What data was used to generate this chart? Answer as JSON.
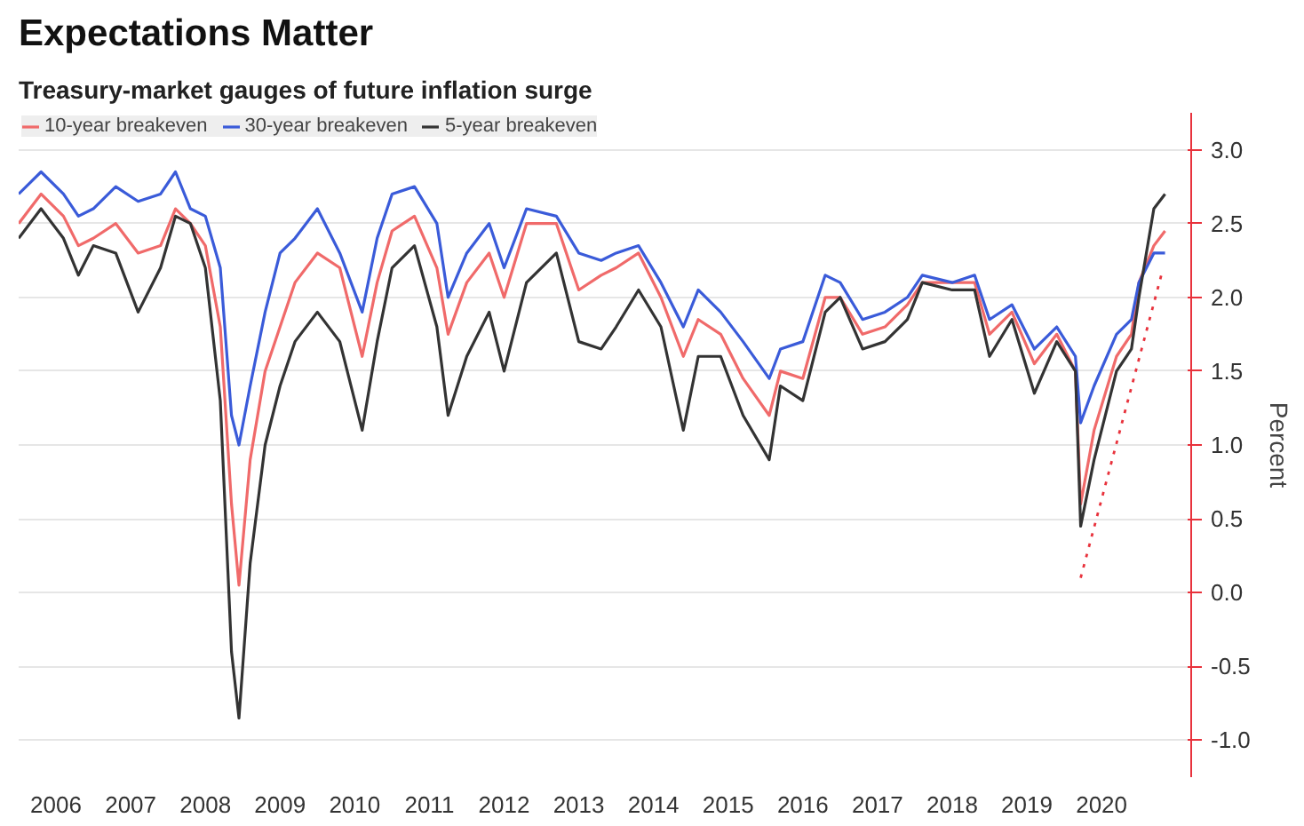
{
  "chart_data": {
    "type": "line",
    "title": "Expectations Matter",
    "subtitle": "Treasury-market gauges of future inflation surge",
    "ylabel": "Percent",
    "xlim": [
      2006.0,
      2021.7
    ],
    "ylim": [
      -1.25,
      3.25
    ],
    "xticks": [
      {
        "value": 2006.5,
        "label": "2006"
      },
      {
        "value": 2007.5,
        "label": "2007"
      },
      {
        "value": 2008.5,
        "label": "2008"
      },
      {
        "value": 2009.5,
        "label": "2009"
      },
      {
        "value": 2010.5,
        "label": "2010"
      },
      {
        "value": 2011.5,
        "label": "2011"
      },
      {
        "value": 2012.5,
        "label": "2012"
      },
      {
        "value": 2013.5,
        "label": "2013"
      },
      {
        "value": 2014.5,
        "label": "2014"
      },
      {
        "value": 2015.5,
        "label": "2015"
      },
      {
        "value": 2016.5,
        "label": "2016"
      },
      {
        "value": 2017.5,
        "label": "2017"
      },
      {
        "value": 2018.5,
        "label": "2018"
      },
      {
        "value": 2019.5,
        "label": "2019"
      },
      {
        "value": 2020.5,
        "label": "2020"
      }
    ],
    "yticks": [
      {
        "value": -1,
        "label": "-1.0"
      },
      {
        "value": -0.5,
        "label": "-0.5"
      },
      {
        "value": 0,
        "label": "0.0"
      },
      {
        "value": 0.5,
        "label": "0.5"
      },
      {
        "value": 1,
        "label": "1.0"
      },
      {
        "value": 1.5,
        "label": "1.5"
      },
      {
        "value": 2,
        "label": "2.0"
      },
      {
        "value": 2.5,
        "label": "2.5"
      },
      {
        "value": 3,
        "label": "3.0"
      }
    ],
    "grid": "y",
    "legend": "top left",
    "x": [
      2006.0,
      2006.3,
      2006.6,
      2006.8,
      2007.0,
      2007.3,
      2007.6,
      2007.9,
      2008.1,
      2008.3,
      2008.5,
      2008.7,
      2008.85,
      2008.95,
      2009.1,
      2009.3,
      2009.5,
      2009.7,
      2010.0,
      2010.3,
      2010.6,
      2010.8,
      2011.0,
      2011.3,
      2011.6,
      2011.75,
      2012.0,
      2012.3,
      2012.5,
      2012.8,
      2013.2,
      2013.5,
      2013.8,
      2014.0,
      2014.3,
      2014.6,
      2014.9,
      2015.1,
      2015.4,
      2015.7,
      2016.05,
      2016.2,
      2016.5,
      2016.8,
      2017.0,
      2017.3,
      2017.6,
      2017.9,
      2018.1,
      2018.5,
      2018.8,
      2019.0,
      2019.3,
      2019.6,
      2019.9,
      2020.15,
      2020.22,
      2020.4,
      2020.7,
      2020.9,
      2021.0,
      2021.2,
      2021.35
    ],
    "series": [
      {
        "name": "10-year breakeven",
        "color": "#f06a6a",
        "values": [
          2.5,
          2.7,
          2.55,
          2.35,
          2.4,
          2.5,
          2.3,
          2.35,
          2.6,
          2.5,
          2.35,
          1.8,
          0.6,
          0.05,
          0.9,
          1.5,
          1.8,
          2.1,
          2.3,
          2.2,
          1.6,
          2.1,
          2.45,
          2.55,
          2.2,
          1.75,
          2.1,
          2.3,
          2.0,
          2.5,
          2.5,
          2.05,
          2.15,
          2.2,
          2.3,
          2.0,
          1.6,
          1.85,
          1.75,
          1.45,
          1.2,
          1.5,
          1.45,
          2.0,
          2.0,
          1.75,
          1.8,
          1.95,
          2.1,
          2.1,
          2.1,
          1.75,
          1.9,
          1.55,
          1.75,
          1.5,
          0.6,
          1.1,
          1.6,
          1.75,
          2.1,
          2.35,
          2.45
        ]
      },
      {
        "name": "30-year breakeven",
        "color": "#3a5bd9",
        "values": [
          2.7,
          2.85,
          2.7,
          2.55,
          2.6,
          2.75,
          2.65,
          2.7,
          2.85,
          2.6,
          2.55,
          2.2,
          1.2,
          1.0,
          1.4,
          1.9,
          2.3,
          2.4,
          2.6,
          2.3,
          1.9,
          2.4,
          2.7,
          2.75,
          2.5,
          2.0,
          2.3,
          2.5,
          2.2,
          2.6,
          2.55,
          2.3,
          2.25,
          2.3,
          2.35,
          2.1,
          1.8,
          2.05,
          1.9,
          1.7,
          1.45,
          1.65,
          1.7,
          2.15,
          2.1,
          1.85,
          1.9,
          2.0,
          2.15,
          2.1,
          2.15,
          1.85,
          1.95,
          1.65,
          1.8,
          1.6,
          1.15,
          1.4,
          1.75,
          1.85,
          2.1,
          2.3,
          2.3
        ]
      },
      {
        "name": "5-year breakeven",
        "color": "#333333",
        "values": [
          2.4,
          2.6,
          2.4,
          2.15,
          2.35,
          2.3,
          1.9,
          2.2,
          2.55,
          2.5,
          2.2,
          1.3,
          -0.4,
          -0.85,
          0.2,
          1.0,
          1.4,
          1.7,
          1.9,
          1.7,
          1.1,
          1.7,
          2.2,
          2.35,
          1.8,
          1.2,
          1.6,
          1.9,
          1.5,
          2.1,
          2.3,
          1.7,
          1.65,
          1.8,
          2.05,
          1.8,
          1.1,
          1.6,
          1.6,
          1.2,
          0.9,
          1.4,
          1.3,
          1.9,
          2.0,
          1.65,
          1.7,
          1.85,
          2.1,
          2.05,
          2.05,
          1.6,
          1.85,
          1.35,
          1.7,
          1.5,
          0.45,
          0.9,
          1.5,
          1.65,
          2.0,
          2.6,
          2.7
        ]
      },
      {
        "color": "#e8323c",
        "line_style": "dotted",
        "x": [
          2020.22,
          2021.3
        ],
        "values": [
          0.1,
          2.15
        ]
      }
    ]
  }
}
